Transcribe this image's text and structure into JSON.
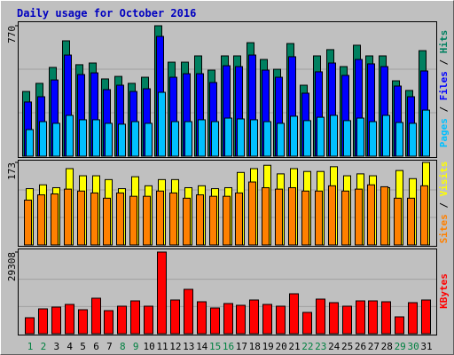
{
  "chart_data": {
    "type": "bar",
    "title": "Daily usage for October 2016",
    "categories": [
      "1",
      "2",
      "3",
      "4",
      "5",
      "6",
      "7",
      "8",
      "9",
      "10",
      "11",
      "12",
      "13",
      "14",
      "15",
      "16",
      "17",
      "18",
      "19",
      "20",
      "21",
      "22",
      "23",
      "24",
      "25",
      "26",
      "27",
      "28",
      "29",
      "30",
      "31"
    ],
    "category_colors": [
      "#008040",
      "#008040",
      "#000000",
      "#000000",
      "#000000",
      "#000000",
      "#000000",
      "#008040",
      "#008040",
      "#000000",
      "#000000",
      "#000000",
      "#000000",
      "#000000",
      "#008040",
      "#008040",
      "#000000",
      "#000000",
      "#000000",
      "#000000",
      "#000000",
      "#008040",
      "#008040",
      "#000000",
      "#000000",
      "#000000",
      "#000000",
      "#000000",
      "#008040",
      "#008040",
      "#000000"
    ],
    "legend_separator": " / ",
    "panels": [
      {
        "ylim": [
          0,
          770
        ],
        "yticks": [
          770
        ],
        "series": [
          {
            "name": "Pages",
            "color": "#00c0ff",
            "values": [
              157,
              204,
              194,
              241,
              215,
              215,
              194,
              189,
              204,
              194,
              377,
              204,
              204,
              215,
              204,
              225,
              220,
              215,
              204,
              194,
              236,
              210,
              230,
              241,
              210,
              225,
              204,
              241,
              199,
              194,
              272
            ]
          },
          {
            "name": "Files",
            "color": "#0000ff",
            "values": [
              320,
              351,
              450,
              597,
              482,
              492,
              393,
              419,
              382,
              398,
              707,
              466,
              487,
              487,
              435,
              534,
              529,
              597,
              508,
              466,
              587,
              372,
              498,
              550,
              477,
              571,
              545,
              529,
              414,
              351,
              503
            ]
          },
          {
            "name": "Hits",
            "color": "#008060",
            "values": [
              382,
              430,
              524,
              681,
              540,
              550,
              456,
              471,
              430,
              466,
              770,
              555,
              555,
              592,
              508,
              592,
              592,
              670,
              571,
              513,
              665,
              419,
              592,
              629,
              529,
              655,
              592,
              592,
              445,
              388,
              623
            ]
          }
        ]
      },
      {
        "ylim": [
          0,
          173
        ],
        "yticks": [
          173
        ],
        "series": [
          {
            "name": "Sites",
            "color": "#ff8000",
            "values": [
              94,
              105,
              107,
              117,
              113,
              109,
              98,
              109,
              102,
              102,
              113,
              109,
              98,
              105,
              102,
              102,
              109,
              132,
              120,
              117,
              120,
              113,
              113,
              124,
              113,
              117,
              126,
              122,
              98,
              98,
              124
            ]
          },
          {
            "name": "Visits",
            "color": "#ffff00",
            "values": [
              118,
              126,
              120,
              160,
              145,
              145,
              137,
              118,
              143,
              124,
              137,
              137,
              120,
              124,
              118,
              120,
              152,
              160,
              167,
              149,
              160,
              154,
              154,
              164,
              145,
              149,
              145,
              120,
              156,
              139,
              173
            ]
          }
        ]
      },
      {
        "ylim": [
          0,
          29308
        ],
        "yticks": [
          29308
        ],
        "series": [
          {
            "name": "KBytes",
            "color": "#ff0000",
            "values": [
              5735,
              8920,
              9558,
              10513,
              8602,
              12743,
              8283,
              9876,
              11787,
              9876,
              29308,
              12106,
              15928,
              11469,
              9239,
              10832,
              10195,
              12106,
              10513,
              9876,
              14336,
              7646,
              12424,
              11150,
              9876,
              11787,
              11787,
              11469,
              6053,
              11150,
              12106
            ]
          }
        ]
      }
    ]
  }
}
